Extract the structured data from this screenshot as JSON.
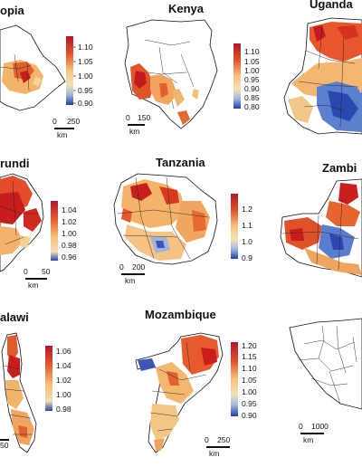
{
  "panels": [
    {
      "id": "ethiopia",
      "title": "opia",
      "legend_ticks": [
        "1.10",
        "1.05",
        "1.00",
        "0.95",
        "0.90"
      ],
      "scale_labels": [
        "0",
        "250"
      ],
      "scale_unit": "km"
    },
    {
      "id": "kenya",
      "title": "Kenya",
      "legend_ticks": [
        "1.10",
        "1.05",
        "1.00",
        "0.95",
        "0.90",
        "0.85",
        "0.80"
      ],
      "scale_labels": [
        "0",
        "150"
      ],
      "scale_unit": "km"
    },
    {
      "id": "uganda",
      "title": "Uganda",
      "legend_ticks": [],
      "scale_labels": [],
      "scale_unit": ""
    },
    {
      "id": "burundi",
      "title": "rundi",
      "legend_ticks": [
        "1.04",
        "1.02",
        "1.00",
        "0.98",
        "0.96"
      ],
      "scale_labels": [
        "0",
        "50"
      ],
      "scale_unit": "km"
    },
    {
      "id": "tanzania",
      "title": "Tanzania",
      "legend_ticks": [
        "1.2",
        "1.1",
        "1.0",
        "0.9"
      ],
      "scale_labels": [
        "0",
        "200"
      ],
      "scale_unit": "km"
    },
    {
      "id": "zambia",
      "title": "Zambi",
      "legend_ticks": [],
      "scale_labels": [],
      "scale_unit": ""
    },
    {
      "id": "malawi",
      "title": "alawi",
      "legend_ticks": [
        "1.06",
        "1.04",
        "1.02",
        "1.00",
        "0.98"
      ],
      "scale_labels": [
        "50"
      ],
      "scale_unit": ""
    },
    {
      "id": "mozambique",
      "title": "Mozambique",
      "legend_ticks": [
        "1.20",
        "1.15",
        "1.10",
        "1.05",
        "1.00",
        "0.95",
        "0.90"
      ],
      "scale_labels": [
        "0",
        "250"
      ],
      "scale_unit": "km"
    },
    {
      "id": "africa",
      "title": "",
      "legend_ticks": [],
      "scale_labels": [
        "0",
        "1000"
      ],
      "scale_unit": "km"
    }
  ],
  "colors": {
    "high": "#c8102e",
    "mid": "#f5c77e",
    "low": "#1f3fa8",
    "outline": "#111111"
  }
}
